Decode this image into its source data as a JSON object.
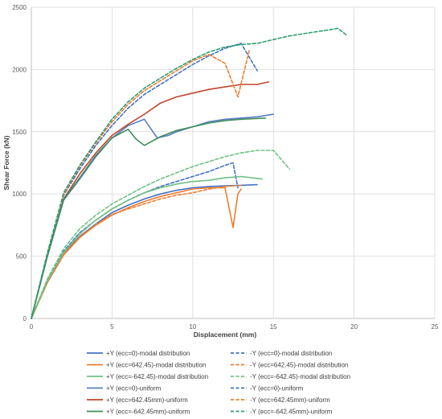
{
  "chart_data": {
    "type": "line",
    "xlabel": "Displacement (mm)",
    "ylabel": "Shear Force (kN)",
    "xlim": [
      0,
      25
    ],
    "ylim": [
      0,
      2500
    ],
    "x_ticks": [
      "0",
      "5",
      "10",
      "15",
      "20",
      "25"
    ],
    "y_ticks": [
      "0",
      "500",
      "1000",
      "1500",
      "2000",
      "2500"
    ],
    "grid": true,
    "legend_position": "bottom",
    "series": [
      {
        "name": "+Y (ecc=0)-modal distribution",
        "color": "#4472C4",
        "dash": "solid",
        "x": [
          0,
          1,
          2,
          3,
          4,
          5,
          6,
          7,
          8,
          9,
          10,
          11,
          12,
          13,
          14
        ],
        "y": [
          0,
          300,
          520,
          660,
          760,
          850,
          910,
          960,
          1000,
          1030,
          1050,
          1060,
          1065,
          1070,
          1075
        ]
      },
      {
        "name": "-Y (ecc=0)-modal distribution",
        "color": "#4472C4",
        "dash": "dashed",
        "x": [
          0,
          1,
          2,
          3,
          4,
          5,
          6,
          7,
          8,
          9,
          10,
          11,
          12,
          12.5,
          12.8
        ],
        "y": [
          0,
          310,
          540,
          690,
          790,
          880,
          950,
          1010,
          1060,
          1100,
          1140,
          1180,
          1230,
          1250,
          1050
        ]
      },
      {
        "name": "+Y (ecc=642.45)-modal distribution",
        "color": "#ED7D31",
        "dash": "solid",
        "x": [
          0,
          1,
          2,
          3,
          4,
          5,
          6,
          7,
          8,
          9,
          10,
          11,
          12,
          12.5,
          12.8,
          13
        ],
        "y": [
          0,
          290,
          510,
          650,
          750,
          830,
          890,
          940,
          980,
          1010,
          1040,
          1050,
          1050,
          730,
          1000,
          1040
        ]
      },
      {
        "name": "-Y (ecc=642.45)-modal distribution",
        "color": "#ED7D31",
        "dash": "dashed",
        "x": [
          0,
          1,
          2,
          3,
          4,
          5,
          6,
          7,
          8,
          9,
          10,
          11,
          12,
          13
        ],
        "y": [
          0,
          295,
          515,
          655,
          755,
          835,
          880,
          920,
          960,
          990,
          1010,
          1040,
          1060,
          1070
        ]
      },
      {
        "name": "+Y (ecc=-642.45)-modal distribution",
        "color": "#70C084",
        "dash": "solid",
        "x": [
          0,
          1,
          2,
          3,
          4,
          5,
          6,
          7,
          8,
          9,
          10,
          11,
          12,
          13,
          14.3
        ],
        "y": [
          0,
          305,
          530,
          680,
          790,
          880,
          950,
          1010,
          1050,
          1080,
          1100,
          1110,
          1130,
          1140,
          1120
        ]
      },
      {
        "name": "-Y (ecc=-642.45)-modal distribution",
        "color": "#70C084",
        "dash": "dashed",
        "x": [
          0,
          1,
          2,
          3,
          4,
          5,
          6,
          7,
          8,
          9,
          10,
          11,
          12,
          13,
          14,
          15,
          16
        ],
        "y": [
          0,
          320,
          560,
          720,
          830,
          920,
          990,
          1060,
          1120,
          1170,
          1220,
          1260,
          1300,
          1330,
          1350,
          1350,
          1200
        ]
      },
      {
        "name": "+Y (ecc=0)-uniform",
        "color": "#5B7FC2",
        "dash": "solid",
        "x": [
          0,
          1,
          2,
          3,
          4,
          5,
          6,
          7,
          7.8,
          8.5,
          9,
          10,
          11,
          12,
          13,
          14,
          15
        ],
        "y": [
          0,
          500,
          950,
          1120,
          1300,
          1450,
          1550,
          1600,
          1450,
          1470,
          1500,
          1540,
          1580,
          1600,
          1610,
          1620,
          1640
        ]
      },
      {
        "name": "-Y (ecc=0)-uniform",
        "color": "#4472C4",
        "dash": "dashed",
        "x": [
          0,
          1,
          2,
          3,
          4,
          5,
          6,
          7,
          8,
          9,
          10,
          11,
          12,
          13,
          14
        ],
        "y": [
          0,
          520,
          990,
          1200,
          1390,
          1550,
          1690,
          1800,
          1880,
          1960,
          2040,
          2110,
          2170,
          2210,
          1990
        ]
      },
      {
        "name": "+Y (ecc=642.45mm)-uniform",
        "color": "#C0452F",
        "dash": "solid",
        "x": [
          0,
          1,
          2,
          3,
          4,
          5,
          6,
          7,
          8,
          9,
          10,
          11,
          12,
          13,
          14,
          14.7
        ],
        "y": [
          0,
          510,
          960,
          1160,
          1330,
          1470,
          1560,
          1640,
          1730,
          1780,
          1810,
          1840,
          1860,
          1880,
          1880,
          1900
        ]
      },
      {
        "name": "-Y (ecc=642.45mm)-uniform",
        "color": "#ED7D31",
        "dash": "dashed",
        "x": [
          0,
          1,
          2,
          3,
          4,
          5,
          6,
          7,
          8,
          9,
          10,
          11,
          12,
          12.8,
          13.5
        ],
        "y": [
          0,
          525,
          1000,
          1220,
          1410,
          1580,
          1720,
          1830,
          1910,
          1990,
          2070,
          2120,
          2050,
          1780,
          2150
        ]
      },
      {
        "name": "+Y (ecc=-642.45mm)-uniform",
        "color": "#3E8E5E",
        "dash": "solid",
        "x": [
          0,
          1,
          2,
          3,
          4,
          5,
          6,
          6.5,
          7,
          8,
          9,
          10,
          11,
          12,
          13,
          14.5
        ],
        "y": [
          0,
          505,
          955,
          1130,
          1310,
          1450,
          1520,
          1440,
          1390,
          1460,
          1510,
          1540,
          1570,
          1590,
          1600,
          1610
        ]
      },
      {
        "name": "-Y (ecc=-642.45mm)-uniform",
        "color": "#2E9E6E",
        "dash": "dashed",
        "x": [
          0,
          1,
          2,
          3,
          4,
          5,
          6,
          7,
          8,
          9,
          10,
          11,
          12,
          13,
          14,
          15,
          16,
          17,
          18,
          19,
          19.5
        ],
        "y": [
          0,
          530,
          1010,
          1230,
          1420,
          1600,
          1740,
          1850,
          1930,
          2010,
          2080,
          2140,
          2180,
          2200,
          2210,
          2240,
          2270,
          2290,
          2310,
          2330,
          2280
        ]
      }
    ]
  }
}
